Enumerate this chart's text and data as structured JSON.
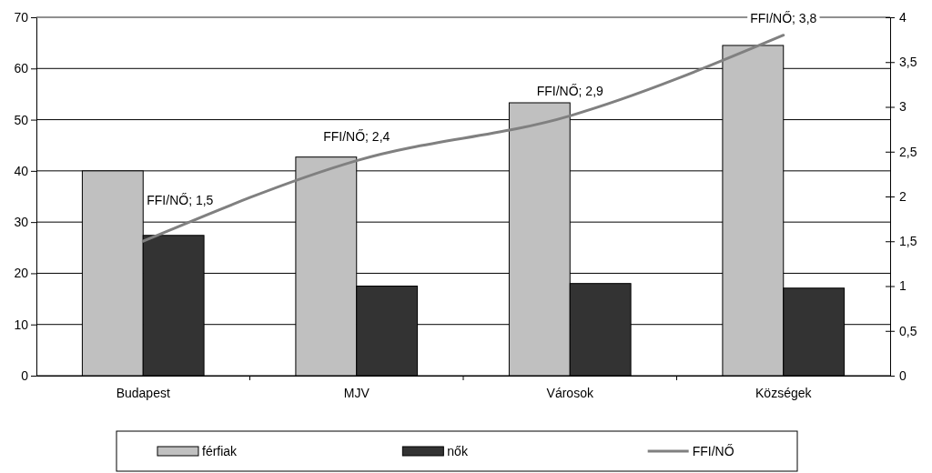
{
  "chart_data": {
    "type": "bar",
    "categories": [
      "Budapest",
      "MJV",
      "Városok",
      "Községek"
    ],
    "series": [
      {
        "name": "férfiak",
        "color": "#c0c0c0",
        "values": [
          40,
          42.7,
          53.3,
          64.5
        ]
      },
      {
        "name": "nők",
        "color": "#333333",
        "values": [
          27.4,
          17.5,
          18,
          17.1
        ]
      },
      {
        "name": "FFI/NŐ",
        "type": "line",
        "axis": "y2",
        "color": "#808080",
        "values": [
          1.5,
          2.4,
          2.9,
          3.8
        ],
        "value_labels": [
          "FFI/NŐ; 1,5",
          "FFI/NŐ; 2,4",
          "FFI/NŐ; 2,9",
          "FFI/NŐ; 3,8"
        ]
      }
    ],
    "ylim": [
      0,
      70
    ],
    "yticks": [
      0,
      10,
      20,
      30,
      40,
      50,
      60,
      70
    ],
    "y2lim": [
      0,
      4
    ],
    "y2ticks": [
      0,
      {
        "value": 0.5,
        "label": "0,5"
      },
      1,
      {
        "value": 1.5,
        "label": "1,5"
      },
      2,
      {
        "value": 2.5,
        "label": "2,5"
      },
      3,
      {
        "value": 3.5,
        "label": "3,5"
      },
      4
    ],
    "grid": "y",
    "legend": "bottom",
    "marker": "none",
    "line_style": "solid"
  }
}
